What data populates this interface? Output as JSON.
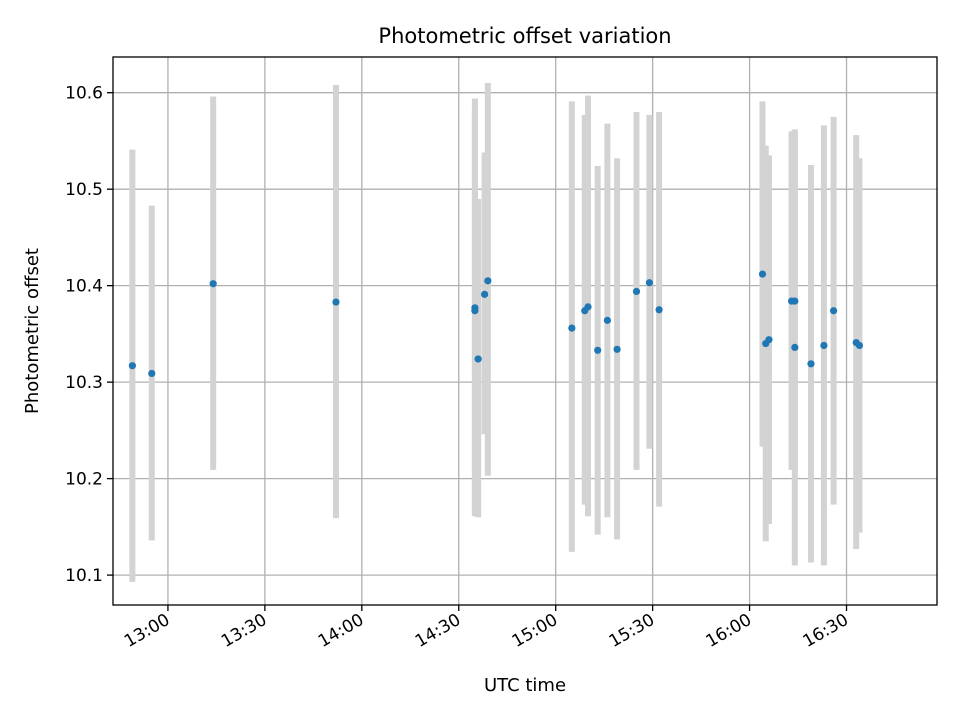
{
  "chart_data": {
    "type": "scatter",
    "title": "Photometric offset variation",
    "xlabel": "UTC time",
    "ylabel": "Photometric offset",
    "xlim": [
      "12:43",
      "16:58"
    ],
    "ylim": [
      10.069,
      10.637
    ],
    "x_ticks": [
      "13:00",
      "13:30",
      "14:00",
      "14:30",
      "15:00",
      "15:30",
      "16:00",
      "16:30"
    ],
    "y_ticks": [
      "10.1",
      "10.2",
      "10.3",
      "10.4",
      "10.5",
      "10.6"
    ],
    "grid": true,
    "points_color": "#1f77b4",
    "errorbar_color": "#d3d3d3",
    "points": [
      {
        "x": "12:49",
        "y": 10.317,
        "ylow": 10.093,
        "yhigh": 10.541
      },
      {
        "x": "12:55",
        "y": 10.309,
        "ylow": 10.136,
        "yhigh": 10.483
      },
      {
        "x": "13:14",
        "y": 10.402,
        "ylow": 10.209,
        "yhigh": 10.596
      },
      {
        "x": "13:52",
        "y": 10.383,
        "ylow": 10.159,
        "yhigh": 10.608
      },
      {
        "x": "14:35",
        "y": 10.377,
        "ylow": 10.161,
        "yhigh": 10.594
      },
      {
        "x": "14:35",
        "y": 10.374,
        "ylow": 10.162,
        "yhigh": 10.58
      },
      {
        "x": "14:36",
        "y": 10.324,
        "ylow": 10.16,
        "yhigh": 10.49
      },
      {
        "x": "14:38",
        "y": 10.391,
        "ylow": 10.246,
        "yhigh": 10.538
      },
      {
        "x": "14:39",
        "y": 10.405,
        "ylow": 10.203,
        "yhigh": 10.61
      },
      {
        "x": "15:05",
        "y": 10.356,
        "ylow": 10.124,
        "yhigh": 10.591
      },
      {
        "x": "15:09",
        "y": 10.374,
        "ylow": 10.173,
        "yhigh": 10.577
      },
      {
        "x": "15:10",
        "y": 10.378,
        "ylow": 10.161,
        "yhigh": 10.597
      },
      {
        "x": "15:13",
        "y": 10.333,
        "ylow": 10.142,
        "yhigh": 10.524
      },
      {
        "x": "15:16",
        "y": 10.364,
        "ylow": 10.16,
        "yhigh": 10.568
      },
      {
        "x": "15:19",
        "y": 10.334,
        "ylow": 10.137,
        "yhigh": 10.532
      },
      {
        "x": "15:25",
        "y": 10.394,
        "ylow": 10.209,
        "yhigh": 10.58
      },
      {
        "x": "15:29",
        "y": 10.403,
        "ylow": 10.231,
        "yhigh": 10.577
      },
      {
        "x": "15:32",
        "y": 10.375,
        "ylow": 10.171,
        "yhigh": 10.58
      },
      {
        "x": "16:04",
        "y": 10.412,
        "ylow": 10.233,
        "yhigh": 10.591
      },
      {
        "x": "16:05",
        "y": 10.34,
        "ylow": 10.135,
        "yhigh": 10.545
      },
      {
        "x": "16:06",
        "y": 10.344,
        "ylow": 10.153,
        "yhigh": 10.535
      },
      {
        "x": "16:13",
        "y": 10.384,
        "ylow": 10.209,
        "yhigh": 10.56
      },
      {
        "x": "16:14",
        "y": 10.384,
        "ylow": 10.209,
        "yhigh": 10.56
      },
      {
        "x": "16:14",
        "y": 10.336,
        "ylow": 10.11,
        "yhigh": 10.562
      },
      {
        "x": "16:19",
        "y": 10.319,
        "ylow": 10.113,
        "yhigh": 10.525
      },
      {
        "x": "16:23",
        "y": 10.338,
        "ylow": 10.11,
        "yhigh": 10.566
      },
      {
        "x": "16:26",
        "y": 10.374,
        "ylow": 10.173,
        "yhigh": 10.575
      },
      {
        "x": "16:33",
        "y": 10.341,
        "ylow": 10.127,
        "yhigh": 10.556
      },
      {
        "x": "16:34",
        "y": 10.338,
        "ylow": 10.144,
        "yhigh": 10.532
      }
    ]
  }
}
